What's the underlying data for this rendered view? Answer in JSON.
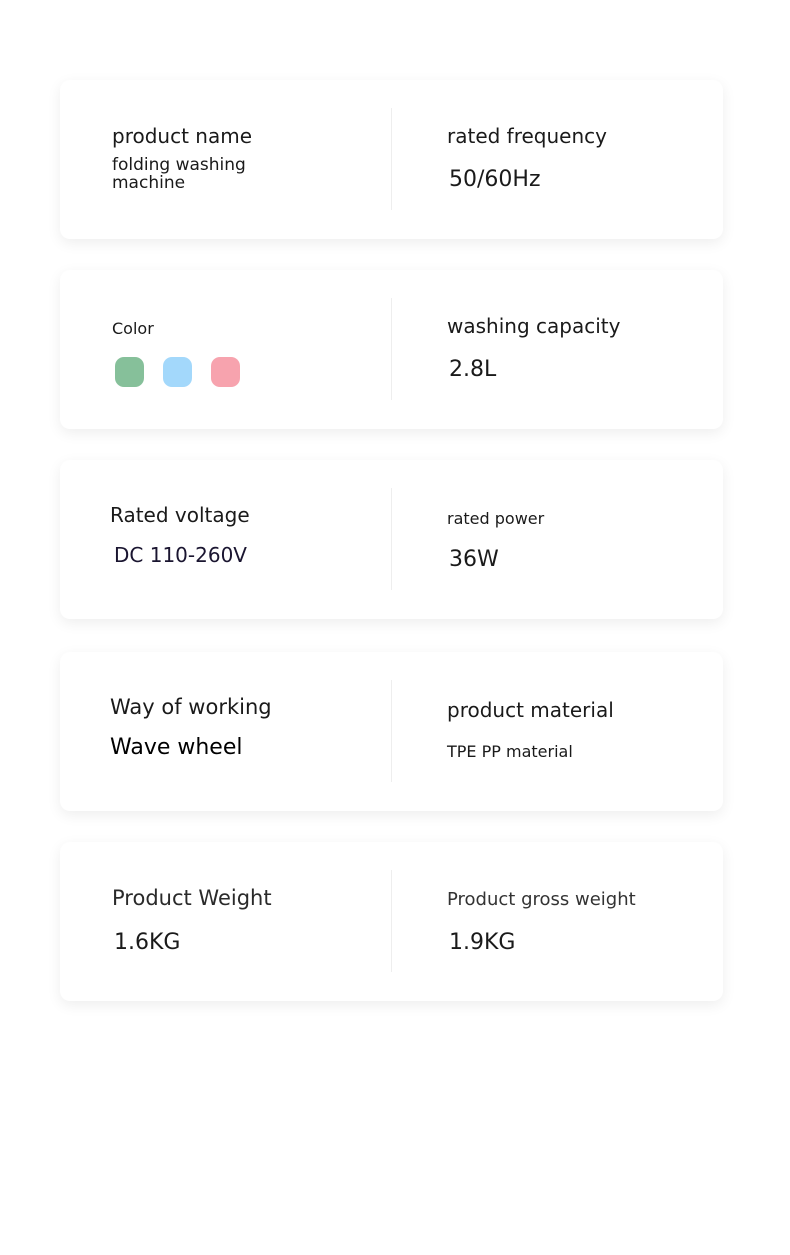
{
  "specs": [
    {
      "left": {
        "label": "product name",
        "value": "folding washing machine"
      },
      "right": {
        "label": "rated frequency",
        "value": "50/60Hz"
      }
    },
    {
      "left": {
        "label": "Color",
        "swatches": [
          "#86c09a",
          "#a3d8fb",
          "#f7a3ae"
        ]
      },
      "right": {
        "label": "washing capacity",
        "value": "2.8L"
      }
    },
    {
      "left": {
        "label": "Rated voltage",
        "value": "DC 110-260V"
      },
      "right": {
        "label": "rated power",
        "value": "36W"
      }
    },
    {
      "left": {
        "label": "Way of working",
        "value": "Wave wheel"
      },
      "right": {
        "label": "product material",
        "value": "TPE PP material"
      }
    },
    {
      "left": {
        "label": "Product Weight",
        "value": "1.6KG"
      },
      "right": {
        "label": "Product gross weight",
        "value": "1.9KG"
      }
    }
  ]
}
